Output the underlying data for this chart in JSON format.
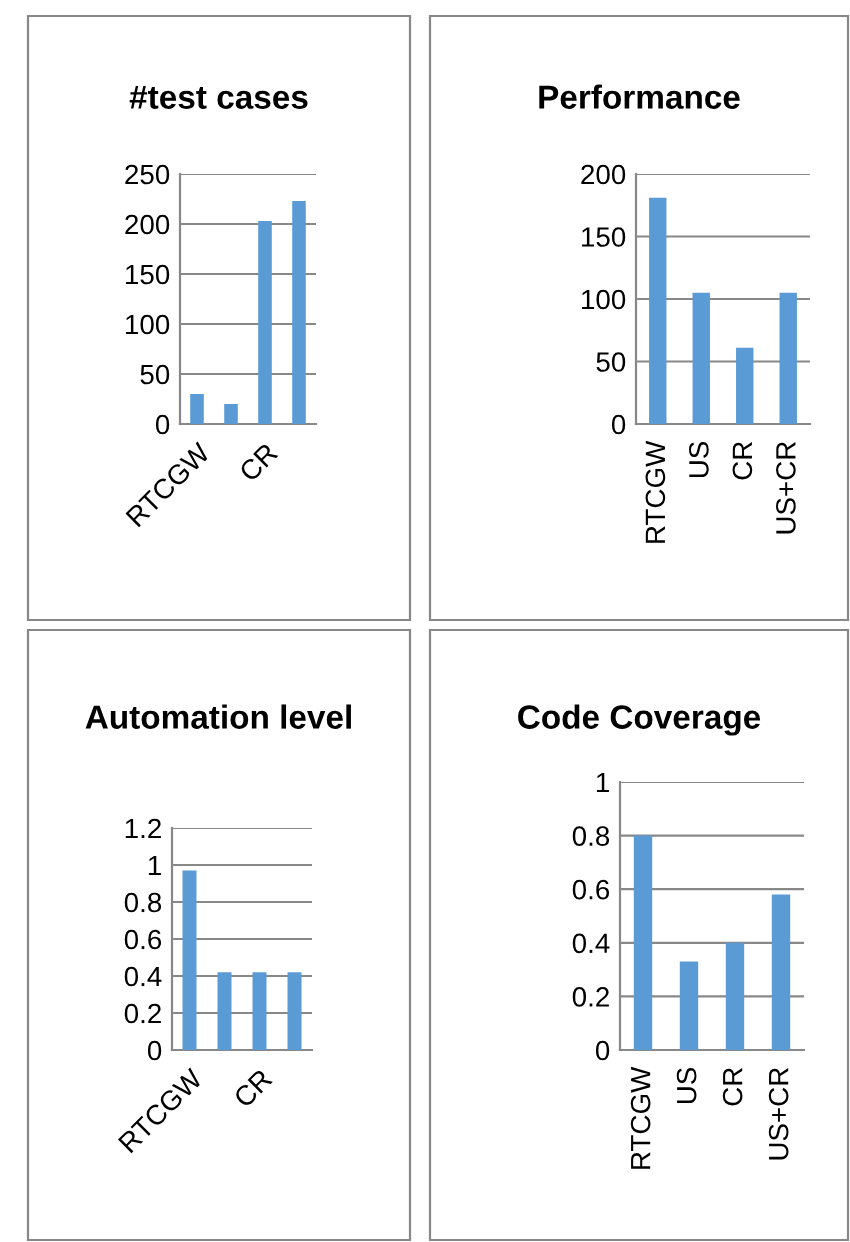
{
  "chart_data": [
    {
      "type": "bar",
      "title": "#test cases",
      "categories": [
        "RTCGW",
        null,
        "CR",
        null
      ],
      "values": [
        30,
        20,
        203,
        223
      ],
      "color": "#5b9bd5",
      "ylim": [
        0,
        250
      ],
      "yticks": [
        0,
        50,
        100,
        150,
        200,
        250
      ],
      "grid": "y"
    },
    {
      "type": "bar",
      "title": "Performance",
      "categories": [
        "RTCGW",
        "US",
        "CR",
        "US+CR"
      ],
      "values": [
        181,
        105,
        61,
        105
      ],
      "color": "#5b9bd5",
      "ylim": [
        0,
        200
      ],
      "yticks": [
        0,
        50,
        100,
        150,
        200
      ],
      "grid": "y"
    },
    {
      "type": "bar",
      "title": "Automation level",
      "categories": [
        "RTCGW",
        null,
        "CR",
        null
      ],
      "values": [
        0.97,
        0.42,
        0.42,
        0.42
      ],
      "color": "#5b9bd5",
      "ylim": [
        0,
        1.2
      ],
      "yticks": [
        0,
        0.2,
        0.4,
        0.6,
        0.8,
        1,
        1.2
      ],
      "grid": "y"
    },
    {
      "type": "bar",
      "title": "Code Coverage",
      "categories": [
        "RTCGW",
        "US",
        "CR",
        "US+CR"
      ],
      "values": [
        0.8,
        0.33,
        0.4,
        0.58
      ],
      "color": "#5b9bd5",
      "ylim": [
        0,
        1
      ],
      "yticks": [
        0,
        0.2,
        0.4,
        0.6,
        0.8,
        1
      ],
      "grid": "y"
    }
  ]
}
